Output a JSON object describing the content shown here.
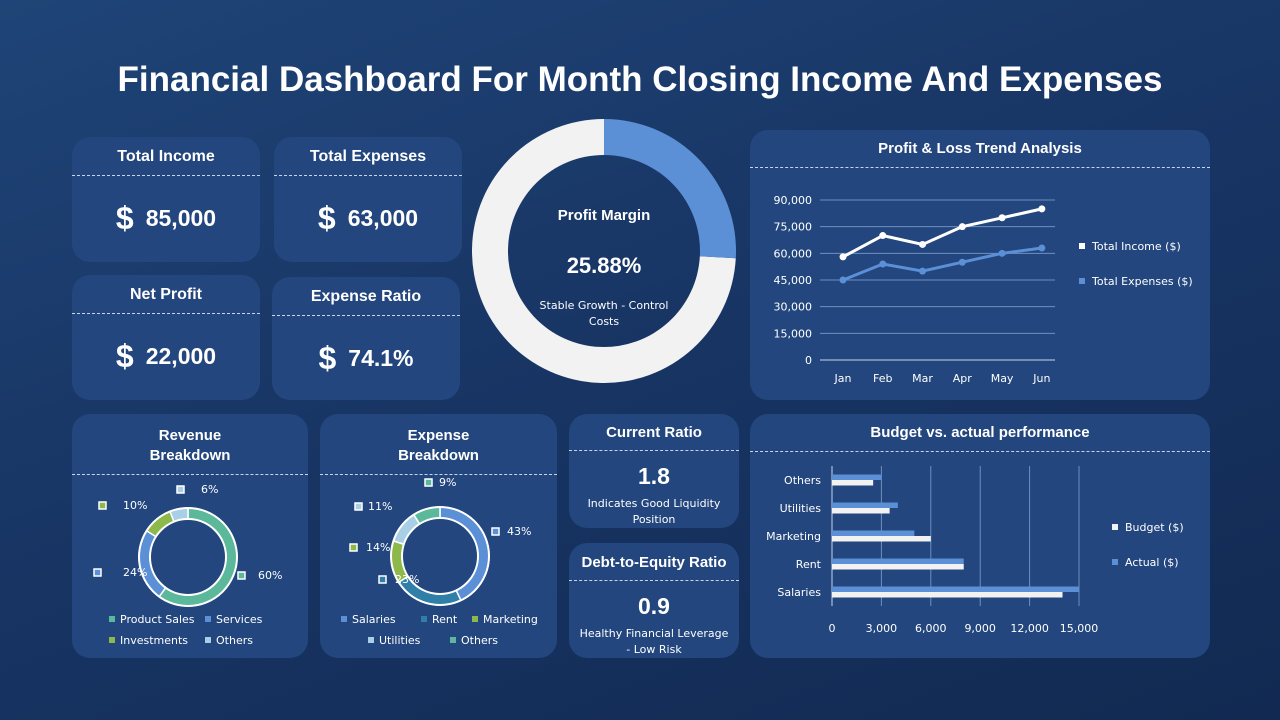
{
  "title": "Financial Dashboard For Month Closing Income And Expenses",
  "kpis": [
    {
      "label": "Total Income",
      "symbol": "$",
      "value": "85,000"
    },
    {
      "label": "Total Expenses",
      "symbol": "$",
      "value": "63,000"
    },
    {
      "label": "Net Profit",
      "symbol": "$",
      "value": "22,000"
    },
    {
      "label": "Expense Ratio",
      "symbol": "$",
      "value": "74.1%"
    }
  ],
  "profit_margin": {
    "label": "Profit Margin",
    "value": "25.88%",
    "percent": 25.88,
    "note": "Stable Growth - Control Costs",
    "colors": {
      "fill": "#5b8fd6",
      "rest": "#f2f2f2"
    }
  },
  "current_ratio": {
    "label": "Current Ratio",
    "value": "1.8",
    "note": "Indicates Good Liquidity Position"
  },
  "debt_equity": {
    "label": "Debt-to-Equity Ratio",
    "value": "0.9",
    "note": "Healthy Financial Leverage - Low Risk"
  },
  "chart_data": [
    {
      "type": "line",
      "title": "Profit & Loss Trend Analysis",
      "categories": [
        "Jan",
        "Feb",
        "Mar",
        "Apr",
        "May",
        "Jun"
      ],
      "ylim": [
        0,
        90000
      ],
      "yticks": [
        "0",
        "15,000",
        "30,000",
        "45,000",
        "60,000",
        "75,000",
        "90,000"
      ],
      "grid": true,
      "legend": "right",
      "series": [
        {
          "name": "Total Income ($)",
          "values": [
            58000,
            70000,
            65000,
            75000,
            80000,
            85000
          ],
          "color": "#ffffff"
        },
        {
          "name": "Total Expenses ($)",
          "values": [
            45000,
            54000,
            50000,
            55000,
            60000,
            63000
          ],
          "color": "#5b8fd6"
        }
      ]
    },
    {
      "type": "bar",
      "orientation": "horizontal",
      "title": "Budget vs. actual performance",
      "categories": [
        "Salaries",
        "Rent",
        "Marketing",
        "Utilities",
        "Others"
      ],
      "xlim": [
        0,
        15000
      ],
      "xticks": [
        "0",
        "3,000",
        "6,000",
        "9,000",
        "12,000",
        "15,000"
      ],
      "grid": true,
      "legend": "right",
      "series": [
        {
          "name": "Budget ($)",
          "values": [
            14000,
            8000,
            6000,
            3500,
            2500
          ],
          "color": "#f2f2f2"
        },
        {
          "name": "Actual ($)",
          "values": [
            15000,
            8000,
            5000,
            4000,
            3000
          ],
          "color": "#5b8fd6"
        }
      ]
    },
    {
      "type": "pie",
      "title": "Revenue Breakdown",
      "labels": [
        "Product Sales",
        "Services",
        "Investments",
        "Others"
      ],
      "values": [
        60,
        24,
        10,
        6
      ],
      "data_labels": [
        "60%",
        "24%",
        "10%",
        "6%"
      ],
      "colors": [
        "#5bb89a",
        "#5b8fd6",
        "#8db84a",
        "#a9cfe6"
      ],
      "legend": "bottom"
    },
    {
      "type": "pie",
      "title": "Expense Breakdown",
      "labels": [
        "Salaries",
        "Rent",
        "Marketing",
        "Utilities",
        "Others"
      ],
      "values": [
        43,
        23,
        14,
        11,
        9
      ],
      "data_labels": [
        "43%",
        "23%",
        "14%",
        "11%",
        "9%"
      ],
      "colors": [
        "#5b8fd6",
        "#2f7fa8",
        "#8db84a",
        "#a9cfe6",
        "#5bb89a"
      ],
      "legend": "bottom"
    }
  ]
}
